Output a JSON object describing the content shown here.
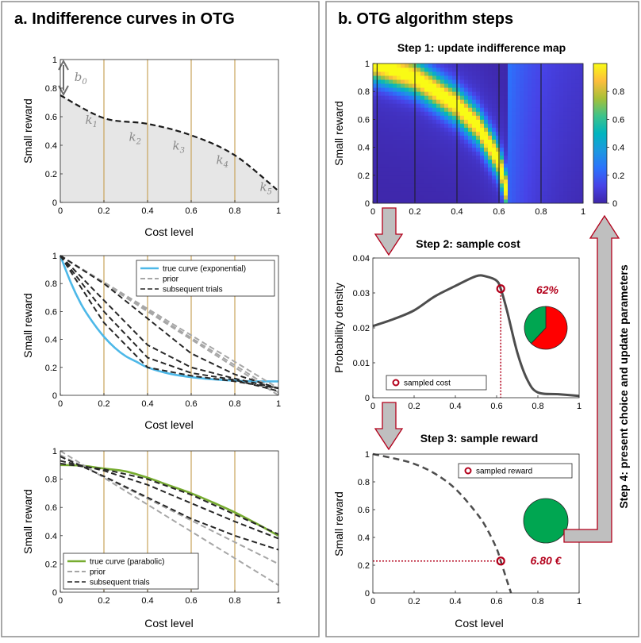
{
  "panel_a": {
    "title": "a. Indifference curves in OTG",
    "chart1": {
      "xlabel": "Cost level",
      "ylabel": "Small reward",
      "xticks": [
        "0",
        "0.2",
        "0.4",
        "0.6",
        "0.8",
        "1"
      ],
      "yticks": [
        "0",
        "0.2",
        "0.4",
        "0.6",
        "0.8",
        "1"
      ],
      "param_labels": [
        "b0",
        "k1",
        "k2",
        "k3",
        "k4",
        "k5"
      ],
      "curve": {
        "x": [
          0,
          0.2,
          0.4,
          0.6,
          0.8,
          1.0
        ],
        "y": [
          0.75,
          0.59,
          0.55,
          0.47,
          0.33,
          0.08
        ]
      }
    },
    "chart2": {
      "xlabel": "Cost level",
      "ylabel": "Small reward",
      "xticks": [
        "0",
        "0.2",
        "0.4",
        "0.6",
        "0.8",
        "1"
      ],
      "yticks": [
        "0",
        "0.2",
        "0.4",
        "0.6",
        "0.8",
        "1"
      ],
      "legend": [
        "true curve (exponential)",
        "prior",
        "subsequent trials"
      ]
    },
    "chart3": {
      "xlabel": "Cost level",
      "ylabel": "Small reward",
      "xticks": [
        "0",
        "0.2",
        "0.4",
        "0.6",
        "0.8",
        "1"
      ],
      "yticks": [
        "0",
        "0.2",
        "0.4",
        "0.6",
        "0.8",
        "1"
      ],
      "legend": [
        "true curve (parabolic)",
        "prior",
        "subsequent trials"
      ]
    }
  },
  "panel_b": {
    "title": "b. OTG algorithm steps",
    "step1": {
      "title": "Step 1: update indifference map",
      "ylabel": "Small reward",
      "xticks": [
        "0",
        "0.2",
        "0.4",
        "0.6",
        "0.8",
        "1"
      ],
      "yticks": [
        "0",
        "0.2",
        "0.4",
        "0.6",
        "0.8",
        "1"
      ],
      "colorbar_ticks": [
        "0",
        "0.2",
        "0.4",
        "0.6",
        "0.8"
      ]
    },
    "step2": {
      "title": "Step 2: sample cost",
      "ylabel": "Probability density",
      "xticks": [
        "0",
        "0.2",
        "0.4",
        "0.6",
        "0.8",
        "1"
      ],
      "yticks": [
        "0",
        "0.01",
        "0.02",
        "0.03",
        "0.04"
      ],
      "legend": "sampled cost",
      "percent_label": "62%",
      "sampled_cost": 0.62
    },
    "step3": {
      "title": "Step 3: sample reward",
      "xlabel": "Cost level",
      "ylabel": "Small reward",
      "xticks": [
        "0",
        "0.2",
        "0.4",
        "0.6",
        "0.8",
        "1"
      ],
      "yticks": [
        "0",
        "0.2",
        "0.4",
        "0.6",
        "0.8",
        "1"
      ],
      "legend": "sampled reward",
      "reward_label": "6.80 €",
      "sampled_reward": 0.23
    },
    "step4": {
      "label": "Step 4: present choice and update parameters"
    }
  },
  "colors": {
    "gold_grid": "#c8a45a",
    "true_exponential": "#4db8e8",
    "true_parabolic": "#77ac30",
    "prior": "#a6a6a6",
    "subsequent": "#262626",
    "accent_red": "#b3001b",
    "pie_red": "#ff0000",
    "pie_green": "#00a651"
  },
  "chart_data": [
    {
      "type": "area",
      "panel": "a-1",
      "x": [
        0,
        0.2,
        0.4,
        0.6,
        0.8,
        1.0
      ],
      "y": [
        0.75,
        0.59,
        0.55,
        0.47,
        0.33,
        0.08
      ],
      "xlabel": "Cost level",
      "ylabel": "Small reward",
      "xlim": [
        0,
        1
      ],
      "ylim": [
        0,
        1
      ]
    },
    {
      "type": "line",
      "panel": "a-2",
      "xlabel": "Cost level",
      "ylabel": "Small reward",
      "xlim": [
        0,
        1
      ],
      "ylim": [
        0,
        1
      ],
      "legend_position": "top-right",
      "series": [
        {
          "name": "true curve (exponential)",
          "x": [
            0,
            0.05,
            0.1,
            0.15,
            0.2,
            0.25,
            0.3,
            0.35,
            0.4,
            0.5,
            0.6,
            0.7,
            0.8,
            0.9,
            1.0
          ],
          "y": [
            1.0,
            0.8,
            0.64,
            0.52,
            0.42,
            0.34,
            0.28,
            0.24,
            0.2,
            0.155,
            0.13,
            0.115,
            0.105,
            0.1,
            0.1
          ]
        },
        {
          "name": "prior",
          "x": [
            0,
            1
          ],
          "y": [
            1.0,
            0.0
          ]
        },
        {
          "name": "prior",
          "x": [
            0,
            1
          ],
          "y": [
            1.0,
            0.02
          ]
        },
        {
          "name": "prior",
          "x": [
            0,
            1
          ],
          "y": [
            1.0,
            0.05
          ]
        },
        {
          "name": "subsequent trials",
          "x": [
            0,
            0.2,
            0.4,
            0.6,
            0.8,
            1.0
          ],
          "y": [
            1.0,
            0.8,
            0.55,
            0.3,
            0.15,
            0.05
          ]
        },
        {
          "name": "subsequent trials",
          "x": [
            0,
            0.2,
            0.4,
            0.6,
            0.8,
            1.0
          ],
          "y": [
            1.0,
            0.68,
            0.36,
            0.2,
            0.12,
            0.05
          ]
        },
        {
          "name": "subsequent trials",
          "x": [
            0,
            0.2,
            0.4,
            0.6,
            0.8,
            1.0
          ],
          "y": [
            1.0,
            0.52,
            0.2,
            0.14,
            0.1,
            0.05
          ]
        },
        {
          "name": "subsequent trials",
          "x": [
            0,
            0.2,
            0.4,
            0.6,
            0.8,
            1.0
          ],
          "y": [
            1.0,
            0.6,
            0.27,
            0.16,
            0.11,
            0.03
          ]
        }
      ]
    },
    {
      "type": "line",
      "panel": "a-3",
      "xlabel": "Cost level",
      "ylabel": "Small reward",
      "xlim": [
        0,
        1
      ],
      "ylim": [
        0,
        1
      ],
      "legend_position": "bottom-left",
      "series": [
        {
          "name": "true curve (parabolic)",
          "x": [
            0,
            0.1,
            0.2,
            0.3,
            0.4,
            0.5,
            0.6,
            0.7,
            0.8,
            0.9,
            1.0
          ],
          "y": [
            0.9,
            0.895,
            0.875,
            0.855,
            0.81,
            0.755,
            0.7,
            0.635,
            0.565,
            0.485,
            0.4
          ]
        },
        {
          "name": "prior",
          "x": [
            0,
            1
          ],
          "y": [
            1.0,
            0.05
          ]
        },
        {
          "name": "prior",
          "x": [
            0,
            1
          ],
          "y": [
            0.97,
            0.2
          ]
        },
        {
          "name": "subsequent trials",
          "x": [
            0,
            0.2,
            0.4,
            0.6,
            0.8,
            1.0
          ],
          "y": [
            0.96,
            0.82,
            0.67,
            0.52,
            0.4,
            0.3
          ]
        },
        {
          "name": "subsequent trials",
          "x": [
            0,
            0.2,
            0.4,
            0.6,
            0.8,
            1.0
          ],
          "y": [
            0.93,
            0.86,
            0.76,
            0.63,
            0.5,
            0.38
          ]
        },
        {
          "name": "subsequent trials",
          "x": [
            0,
            0.2,
            0.4,
            0.6,
            0.8,
            1.0
          ],
          "y": [
            0.91,
            0.87,
            0.8,
            0.69,
            0.55,
            0.41
          ]
        }
      ]
    },
    {
      "type": "heatmap",
      "panel": "b-1",
      "ylabel": "Small reward",
      "xlim": [
        0,
        1
      ],
      "ylim": [
        0,
        1
      ],
      "colorbar_range": [
        0,
        1
      ],
      "ridge": {
        "x": [
          0,
          0.2,
          0.4,
          0.5,
          0.6,
          0.65
        ],
        "y": [
          1.0,
          0.9,
          0.7,
          0.55,
          0.3,
          0.0
        ]
      }
    },
    {
      "type": "line",
      "panel": "b-2",
      "ylabel": "Probability density",
      "xlim": [
        0,
        1
      ],
      "ylim": [
        0,
        0.04
      ],
      "series": [
        {
          "name": "",
          "x": [
            0,
            0.1,
            0.2,
            0.3,
            0.4,
            0.5,
            0.55,
            0.6,
            0.62,
            0.65,
            0.7,
            0.75,
            0.8,
            0.9,
            1.0
          ],
          "y": [
            0.0205,
            0.0225,
            0.025,
            0.029,
            0.032,
            0.0348,
            0.0347,
            0.0335,
            0.0312,
            0.025,
            0.013,
            0.005,
            0.0015,
            0.001,
            0.0005
          ]
        }
      ],
      "marker": {
        "name": "sampled cost",
        "x": 0.62,
        "y": 0.0312
      },
      "pie": [
        0.38,
        0.62
      ]
    },
    {
      "type": "line",
      "panel": "b-3",
      "xlabel": "Cost level",
      "ylabel": "Small reward",
      "xlim": [
        0,
        1
      ],
      "ylim": [
        0,
        1
      ],
      "series": [
        {
          "name": "",
          "x": [
            0,
            0.1,
            0.2,
            0.3,
            0.4,
            0.5,
            0.55,
            0.6,
            0.62,
            0.65,
            0.67
          ],
          "y": [
            1.0,
            0.97,
            0.93,
            0.86,
            0.75,
            0.58,
            0.47,
            0.32,
            0.23,
            0.09,
            0.0
          ]
        }
      ],
      "marker": {
        "name": "sampled reward",
        "x": 0.62,
        "y": 0.23
      },
      "pie": [
        0.0,
        1.0
      ]
    }
  ]
}
